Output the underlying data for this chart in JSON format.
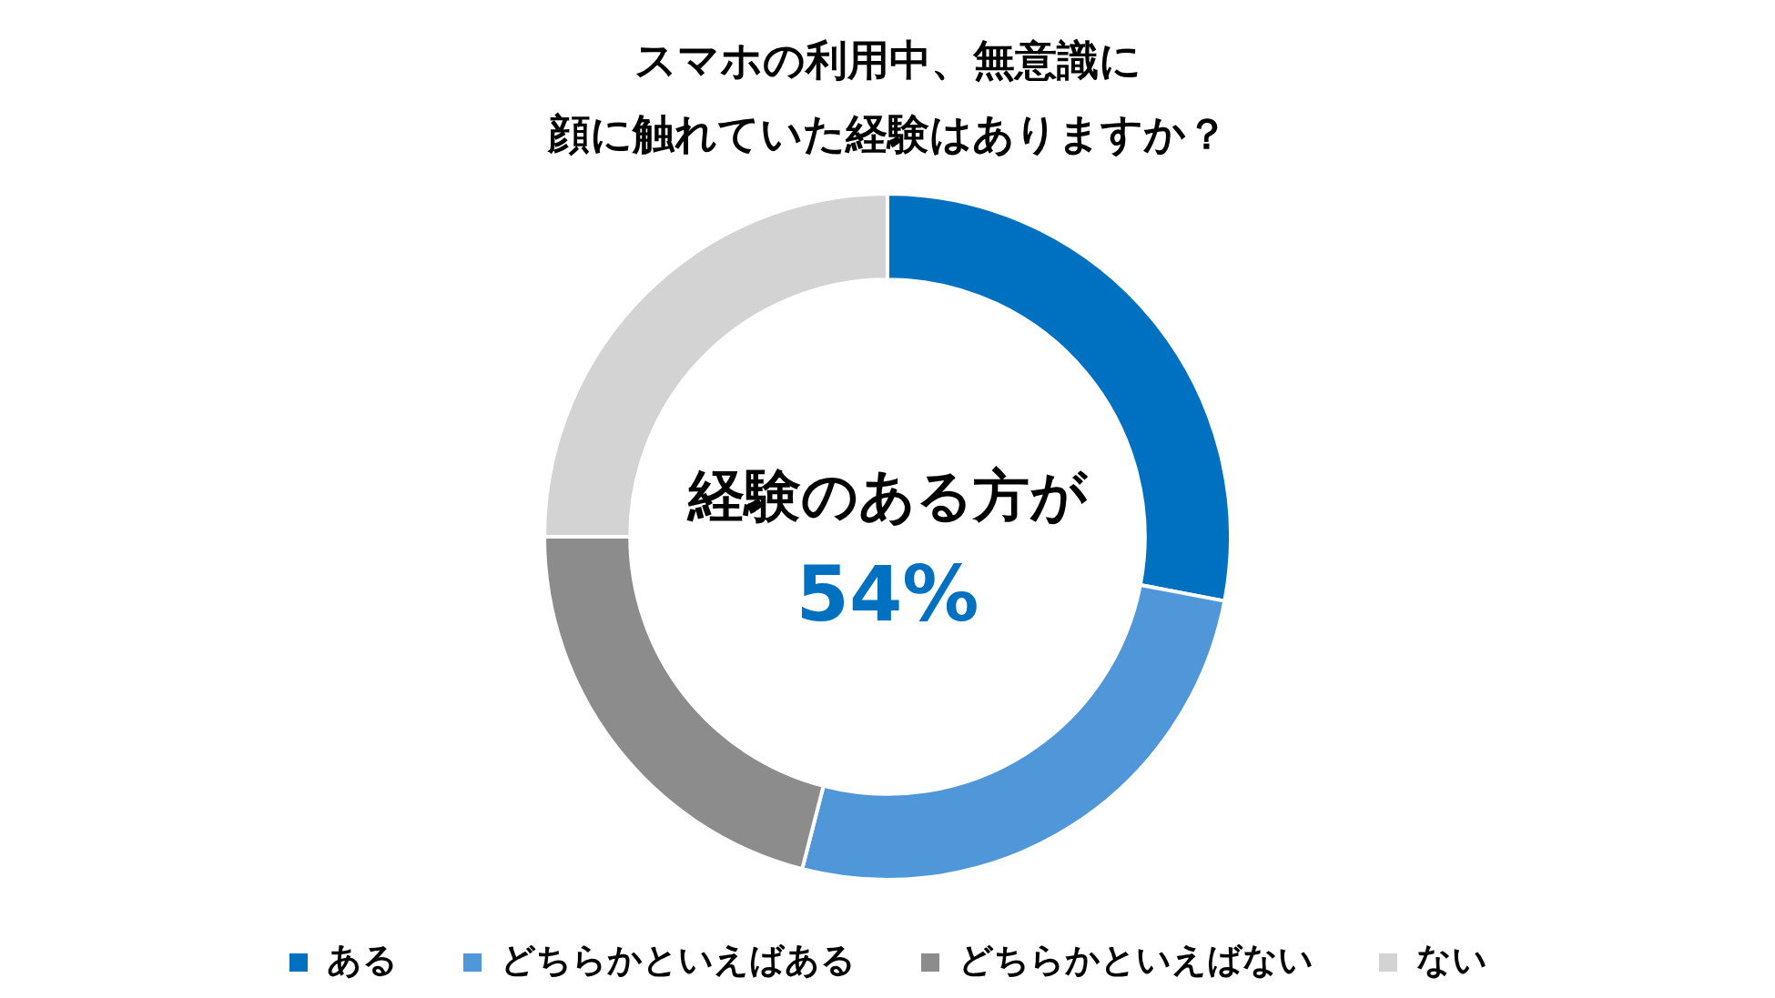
{
  "chart_data": {
    "type": "donut",
    "title": "スマホの利用中、無意識に顔に触れていた経験はありますか？",
    "categories": [
      "ある",
      "どちらかといえばある",
      "どちらかといえばない",
      "ない"
    ],
    "values": [
      28,
      26,
      21,
      25
    ],
    "colors": [
      "#0070c0",
      "#5097da",
      "#8c8c8c",
      "#d3d3d3"
    ],
    "legend": "bottom",
    "annotations": [
      "経験のある方が",
      "54%"
    ]
  }
}
